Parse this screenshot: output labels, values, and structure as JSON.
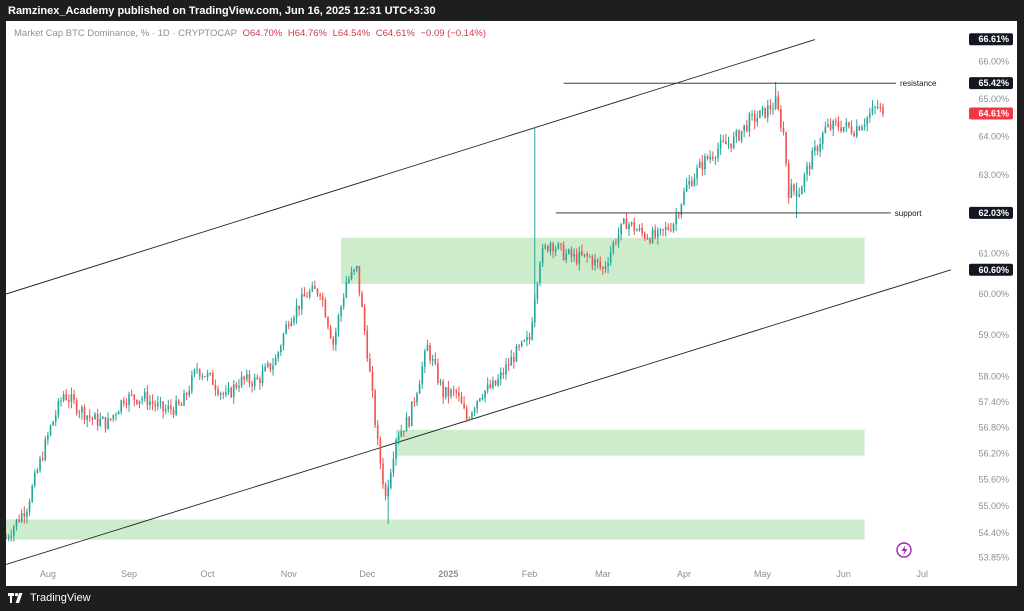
{
  "header": {
    "published_text": "Ramzinex_Academy published on TradingView.com, Jun 16, 2025 12:31 UTC+3:30"
  },
  "legend": {
    "symbol": "Market Cap BTC Dominance, % · 1D · CRYPTOCAP",
    "open": "O64.70%",
    "high": "H64.76%",
    "low": "L64.54%",
    "close": "C64.61%",
    "change": "−0.09 (−0.14%)"
  },
  "footer": {
    "brand": "TradingView"
  },
  "colors": {
    "up": "#26a69a",
    "down": "#ef5350",
    "zone": "#cdeccb",
    "line": "#222222",
    "axis_text": "#8a8f9c",
    "current_price_bg": "#f23645",
    "price_tag_bg": "#131722",
    "flash_icon": "#9c27b0"
  },
  "icons": {
    "alert": "lightning-icon",
    "logo": "tradingview-logo-icon"
  },
  "chart_data": {
    "type": "candlestick",
    "title": "Market Cap BTC Dominance, % · 1D · CRYPTOCAP",
    "scale": "log",
    "ylim": [
      53.6,
      67.0
    ],
    "x_range": [
      "2024-07-16",
      "2025-07-12"
    ],
    "x_ticks": [
      {
        "label": "Aug",
        "date": "2024-08-01"
      },
      {
        "label": "Sep",
        "date": "2024-09-01"
      },
      {
        "label": "Oct",
        "date": "2024-10-01"
      },
      {
        "label": "Nov",
        "date": "2024-11-01"
      },
      {
        "label": "Dec",
        "date": "2024-12-01"
      },
      {
        "label": "2025",
        "date": "2025-01-01"
      },
      {
        "label": "Feb",
        "date": "2025-02-01"
      },
      {
        "label": "Mar",
        "date": "2025-03-01"
      },
      {
        "label": "Apr",
        "date": "2025-04-01"
      },
      {
        "label": "May",
        "date": "2025-05-01"
      },
      {
        "label": "Jun",
        "date": "2025-06-01"
      },
      {
        "label": "Jul",
        "date": "2025-07-01"
      }
    ],
    "y_ticks": [
      "66.00%",
      "65.00%",
      "64.00%",
      "63.00%",
      "61.00%",
      "60.00%",
      "59.00%",
      "58.00%",
      "57.40%",
      "56.80%",
      "56.20%",
      "55.60%",
      "55.00%",
      "54.40%",
      "53.85%"
    ],
    "price_tags": [
      {
        "label": "66.61%",
        "value": 66.61,
        "style": "dark"
      },
      {
        "label": "65.42%",
        "value": 65.42,
        "style": "dark"
      },
      {
        "label": "64.61%",
        "value": 64.61,
        "style": "current"
      },
      {
        "label": "62.03%",
        "value": 62.03,
        "style": "dark"
      },
      {
        "label": "60.60%",
        "value": 60.6,
        "style": "dark"
      }
    ],
    "candle_path": [
      [
        "2024-07-16",
        54.3
      ],
      [
        "2024-07-24",
        55.0
      ],
      [
        "2024-08-02",
        56.8
      ],
      [
        "2024-08-07",
        57.6
      ],
      [
        "2024-08-12",
        57.3
      ],
      [
        "2024-08-18",
        57.0
      ],
      [
        "2024-08-24",
        56.9
      ],
      [
        "2024-08-30",
        57.5
      ],
      [
        "2024-09-07",
        57.5
      ],
      [
        "2024-09-14",
        57.2
      ],
      [
        "2024-09-21",
        57.3
      ],
      [
        "2024-09-27",
        58.2
      ],
      [
        "2024-10-03",
        57.9
      ],
      [
        "2024-10-08",
        57.5
      ],
      [
        "2024-10-13",
        57.9
      ],
      [
        "2024-10-20",
        57.9
      ],
      [
        "2024-10-27",
        58.4
      ],
      [
        "2024-11-01",
        59.4
      ],
      [
        "2024-11-08",
        60.0
      ],
      [
        "2024-11-13",
        60.1
      ],
      [
        "2024-11-18",
        58.8
      ],
      [
        "2024-11-23",
        60.3
      ],
      [
        "2024-11-27",
        60.6
      ],
      [
        "2024-12-01",
        58.6
      ],
      [
        "2024-12-05",
        56.4
      ],
      [
        "2024-12-08",
        55.2
      ],
      [
        "2024-12-12",
        56.6
      ],
      [
        "2024-12-17",
        57.0
      ],
      [
        "2024-12-24",
        58.7
      ],
      [
        "2024-12-30",
        57.6
      ],
      [
        "2025-01-04",
        57.6
      ],
      [
        "2025-01-08",
        57.0
      ],
      [
        "2025-01-13",
        57.6
      ],
      [
        "2025-01-19",
        57.8
      ],
      [
        "2025-01-26",
        58.5
      ],
      [
        "2025-02-01",
        58.9
      ],
      [
        "2025-02-03",
        60.0
      ],
      [
        "2025-02-05",
        60.9
      ],
      [
        "2025-02-09",
        61.3
      ],
      [
        "2025-02-14",
        61.0
      ],
      [
        "2025-02-18",
        60.9
      ],
      [
        "2025-02-24",
        60.9
      ],
      [
        "2025-03-01",
        60.6
      ],
      [
        "2025-03-06",
        61.4
      ],
      [
        "2025-03-10",
        61.8
      ],
      [
        "2025-03-16",
        61.5
      ],
      [
        "2025-03-22",
        61.4
      ],
      [
        "2025-03-28",
        61.8
      ],
      [
        "2025-04-02",
        62.7
      ],
      [
        "2025-04-08",
        63.3
      ],
      [
        "2025-04-14",
        63.7
      ],
      [
        "2025-04-20",
        63.9
      ],
      [
        "2025-04-26",
        64.4
      ],
      [
        "2025-05-01",
        64.6
      ],
      [
        "2025-05-06",
        64.9
      ],
      [
        "2025-05-09",
        64.1
      ],
      [
        "2025-05-11",
        62.6
      ],
      [
        "2025-05-15",
        62.6
      ],
      [
        "2025-05-19",
        63.3
      ],
      [
        "2025-05-25",
        64.2
      ],
      [
        "2025-05-30",
        64.3
      ],
      [
        "2025-06-05",
        64.2
      ],
      [
        "2025-06-10",
        64.5
      ],
      [
        "2025-06-14",
        64.8
      ],
      [
        "2025-06-16",
        64.61
      ]
    ],
    "wick_spikes": [
      {
        "date": "2025-02-03",
        "high": 64.25,
        "low": 59.4
      },
      {
        "date": "2024-12-09",
        "high": 55.6,
        "low": 54.6
      },
      {
        "date": "2025-05-06",
        "high": 65.45,
        "low": 64.7
      },
      {
        "date": "2025-05-14",
        "high": 62.8,
        "low": 61.9
      }
    ],
    "zones": [
      {
        "from": "2024-11-21",
        "to": "2025-06-09",
        "low": 60.25,
        "high": 61.4
      },
      {
        "from": "2024-12-12",
        "to": "2025-06-09",
        "low": 56.15,
        "high": 56.75
      },
      {
        "from": "2024-07-16",
        "to": "2025-06-09",
        "low": 54.25,
        "high": 54.7
      }
    ],
    "trendlines": [
      {
        "name": "channel-upper",
        "points": [
          [
            "2024-07-16",
            60.0
          ],
          [
            "2025-05-21",
            66.6
          ]
        ]
      },
      {
        "name": "channel-lower",
        "points": [
          [
            "2024-07-16",
            53.7
          ],
          [
            "2025-07-12",
            60.6
          ]
        ]
      }
    ],
    "annotations": [
      {
        "label": "resistance",
        "value": 65.42,
        "from": "2025-02-14",
        "to": "2025-06-21"
      },
      {
        "label": "support",
        "value": 62.03,
        "from": "2025-02-11",
        "to": "2025-06-19"
      }
    ]
  }
}
